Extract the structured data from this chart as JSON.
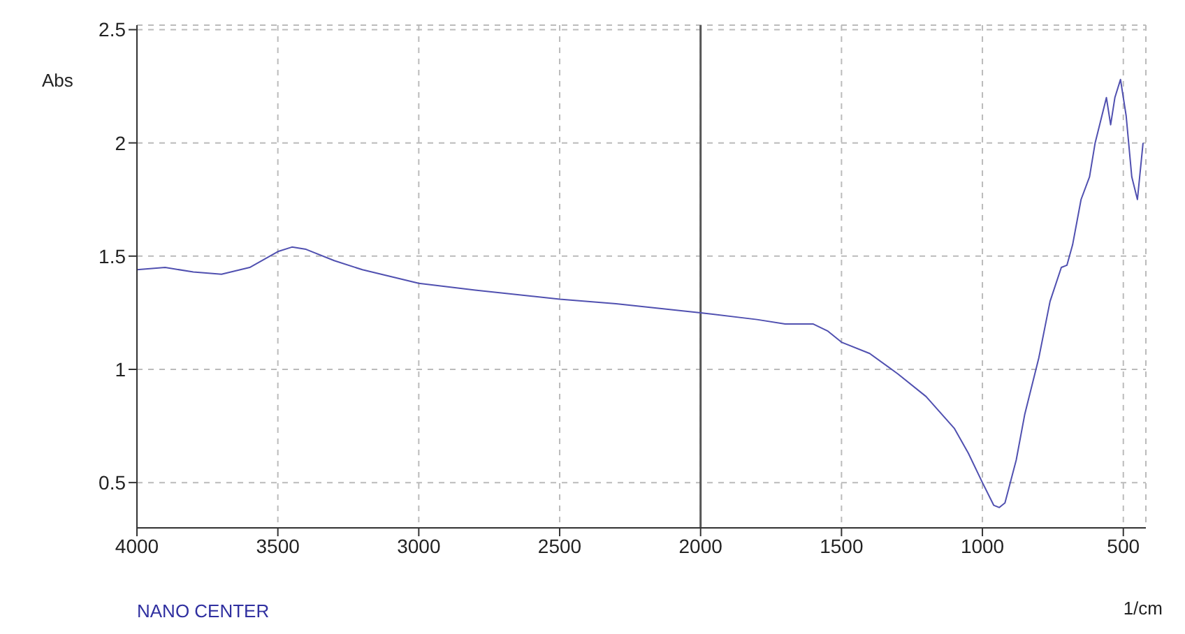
{
  "chart_data": {
    "type": "line",
    "xlabel": "1/cm",
    "ylabel": "Abs",
    "annotations": [
      "NANO CENTER"
    ],
    "x": [
      4000,
      3900,
      3800,
      3700,
      3600,
      3500,
      3450,
      3400,
      3300,
      3200,
      3000,
      2800,
      2500,
      2300,
      2000,
      1800,
      1700,
      1600,
      1550,
      1500,
      1400,
      1300,
      1200,
      1100,
      1050,
      1000,
      960,
      940,
      920,
      880,
      850,
      800,
      760,
      720,
      700,
      680,
      650,
      620,
      600,
      580,
      560,
      545,
      530,
      510,
      490,
      470,
      450,
      430
    ],
    "series": [
      {
        "color": "#5050b0",
        "values": [
          1.44,
          1.45,
          1.43,
          1.42,
          1.45,
          1.52,
          1.54,
          1.53,
          1.48,
          1.44,
          1.38,
          1.35,
          1.31,
          1.29,
          1.25,
          1.22,
          1.2,
          1.2,
          1.17,
          1.12,
          1.07,
          0.98,
          0.88,
          0.74,
          0.63,
          0.5,
          0.4,
          0.39,
          0.41,
          0.6,
          0.8,
          1.05,
          1.3,
          1.45,
          1.46,
          1.55,
          1.75,
          1.85,
          2.0,
          2.1,
          2.2,
          2.08,
          2.2,
          2.28,
          2.12,
          1.85,
          1.75,
          2.0
        ]
      }
    ],
    "xlim": [
      4000,
      420
    ],
    "ylim": [
      0.3,
      2.52
    ],
    "xticks": [
      4000,
      3500,
      3000,
      2500,
      2000,
      1500,
      1000,
      500
    ],
    "yticks": [
      0.5,
      1,
      1.5,
      2,
      2.5
    ],
    "grid": true,
    "marker": "none",
    "line_style": "solid",
    "ref_lines": [
      {
        "axis": "x",
        "value": 2000,
        "color": "#555555"
      }
    ]
  }
}
